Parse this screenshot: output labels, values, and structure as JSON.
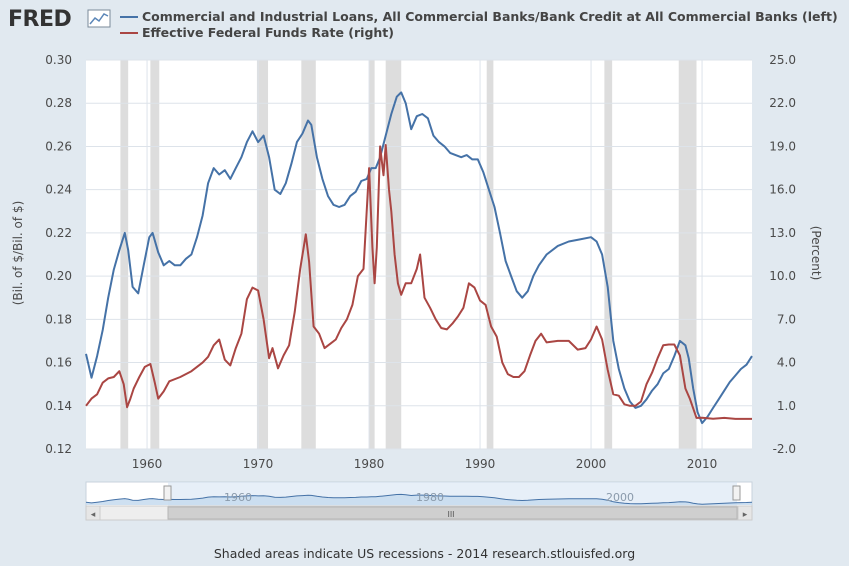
{
  "logo": "FRED",
  "colors": {
    "page_bg": "#e1e9f0",
    "plot_bg": "#ffffff",
    "grid": "#dde3ea",
    "recession": "#dddddd",
    "series_left": "#4572a7",
    "series_right": "#aa4643",
    "navigator_fill": "#c6dbef",
    "navigator_line": "#4572a7"
  },
  "footer_note": "Shaded areas indicate US recessions - 2014 research.stlouisfed.org",
  "navigator": {
    "labels": [
      "1960",
      "1980",
      "2000"
    ],
    "scroll_grip": "III",
    "left_arrow": "◂",
    "right_arrow": "▸"
  },
  "chart_data": {
    "type": "line",
    "title": "",
    "xlabel": "",
    "ylabel_left": "(Bil. of $/Bil. of $)",
    "ylabel_right": "(Percent)",
    "xlim": [
      1954.5,
      2014.5
    ],
    "ylim_left": [
      0.12,
      0.3
    ],
    "ylim_right": [
      -2.0,
      25.0
    ],
    "x_ticks": [
      "1960",
      "1970",
      "1980",
      "1990",
      "2000",
      "2010"
    ],
    "y_ticks_left": [
      "0.12",
      "0.14",
      "0.16",
      "0.18",
      "0.20",
      "0.22",
      "0.24",
      "0.26",
      "0.28",
      "0.30"
    ],
    "y_ticks_right": [
      "-2.0",
      "1.0",
      "4.0",
      "7.0",
      "10.0",
      "13.0",
      "16.0",
      "19.0",
      "22.0",
      "25.0"
    ],
    "grid": true,
    "legend_position": "top",
    "recessions": [
      [
        1957.6,
        1958.3
      ],
      [
        1960.3,
        1961.1
      ],
      [
        1969.9,
        1970.9
      ],
      [
        1973.9,
        1975.2
      ],
      [
        1980.0,
        1980.5
      ],
      [
        1981.5,
        1982.9
      ],
      [
        1990.6,
        1991.2
      ],
      [
        2001.2,
        2001.9
      ],
      [
        2007.9,
        2009.5
      ]
    ],
    "series": [
      {
        "name": "Commercial and Industrial Loans, All Commercial Banks/Bank Credit at All Commercial Banks (left)",
        "axis": "left",
        "x": [
          1954.5,
          1955.0,
          1955.5,
          1956.0,
          1956.5,
          1957.0,
          1957.5,
          1958.0,
          1958.3,
          1958.7,
          1959.2,
          1959.7,
          1960.2,
          1960.5,
          1961.0,
          1961.5,
          1962.0,
          1962.5,
          1963.0,
          1963.5,
          1964.0,
          1964.5,
          1965.0,
          1965.5,
          1966.0,
          1966.5,
          1967.0,
          1967.5,
          1968.0,
          1968.5,
          1969.0,
          1969.5,
          1970.0,
          1970.5,
          1971.0,
          1971.5,
          1972.0,
          1972.5,
          1973.0,
          1973.5,
          1974.0,
          1974.5,
          1974.8,
          1975.3,
          1975.8,
          1976.3,
          1976.8,
          1977.3,
          1977.8,
          1978.3,
          1978.8,
          1979.3,
          1979.8,
          1980.2,
          1980.6,
          1981.0,
          1981.5,
          1982.0,
          1982.5,
          1982.9,
          1983.3,
          1983.8,
          1984.3,
          1984.8,
          1985.3,
          1985.8,
          1986.3,
          1986.8,
          1987.3,
          1987.8,
          1988.3,
          1988.8,
          1989.3,
          1989.8,
          1990.3,
          1990.8,
          1991.3,
          1991.8,
          1992.3,
          1992.8,
          1993.3,
          1993.8,
          1994.3,
          1994.8,
          1995.3,
          1996.0,
          1997.0,
          1998.0,
          1999.0,
          2000.0,
          2000.5,
          2001.0,
          2001.5,
          2002.0,
          2002.5,
          2003.0,
          2003.5,
          2004.0,
          2004.5,
          2005.0,
          2005.5,
          2006.0,
          2006.5,
          2007.0,
          2007.5,
          2008.0,
          2008.5,
          2008.8,
          2009.2,
          2009.6,
          2010.0,
          2010.5,
          2011.0,
          2011.5,
          2012.0,
          2012.5,
          2013.0,
          2013.5,
          2014.0,
          2014.5
        ],
        "values": [
          0.164,
          0.153,
          0.163,
          0.175,
          0.19,
          0.203,
          0.212,
          0.22,
          0.212,
          0.195,
          0.192,
          0.205,
          0.218,
          0.22,
          0.211,
          0.205,
          0.207,
          0.205,
          0.205,
          0.208,
          0.21,
          0.218,
          0.228,
          0.243,
          0.25,
          0.247,
          0.249,
          0.245,
          0.25,
          0.255,
          0.262,
          0.267,
          0.262,
          0.265,
          0.255,
          0.24,
          0.238,
          0.243,
          0.252,
          0.262,
          0.266,
          0.272,
          0.27,
          0.255,
          0.245,
          0.237,
          0.233,
          0.232,
          0.233,
          0.237,
          0.239,
          0.244,
          0.245,
          0.25,
          0.25,
          0.255,
          0.265,
          0.275,
          0.283,
          0.285,
          0.28,
          0.268,
          0.274,
          0.275,
          0.273,
          0.265,
          0.262,
          0.26,
          0.257,
          0.256,
          0.255,
          0.256,
          0.254,
          0.254,
          0.248,
          0.24,
          0.232,
          0.22,
          0.207,
          0.2,
          0.193,
          0.19,
          0.193,
          0.2,
          0.205,
          0.21,
          0.214,
          0.216,
          0.217,
          0.218,
          0.216,
          0.21,
          0.195,
          0.17,
          0.157,
          0.148,
          0.142,
          0.139,
          0.14,
          0.143,
          0.147,
          0.15,
          0.155,
          0.157,
          0.163,
          0.17,
          0.168,
          0.162,
          0.148,
          0.137,
          0.132,
          0.135,
          0.139,
          0.143,
          0.147,
          0.151,
          0.154,
          0.157,
          0.159,
          0.163
        ]
      },
      {
        "name": "Effective Federal Funds Rate (right)",
        "axis": "right",
        "x": [
          1954.5,
          1955.0,
          1955.5,
          1956.0,
          1956.5,
          1957.0,
          1957.5,
          1957.9,
          1958.2,
          1958.5,
          1958.8,
          1959.3,
          1959.8,
          1960.3,
          1960.7,
          1961.0,
          1961.5,
          1962.0,
          1963.0,
          1964.0,
          1965.0,
          1965.5,
          1966.0,
          1966.5,
          1967.0,
          1967.5,
          1968.0,
          1968.5,
          1969.0,
          1969.5,
          1970.0,
          1970.5,
          1971.0,
          1971.3,
          1971.8,
          1972.3,
          1972.8,
          1973.3,
          1973.8,
          1974.3,
          1974.6,
          1975.0,
          1975.5,
          1976.0,
          1976.5,
          1977.0,
          1977.5,
          1978.0,
          1978.5,
          1979.0,
          1979.5,
          1980.0,
          1980.3,
          1980.5,
          1980.7,
          1981.0,
          1981.3,
          1981.5,
          1981.8,
          1982.0,
          1982.3,
          1982.6,
          1982.9,
          1983.3,
          1983.8,
          1984.3,
          1984.6,
          1985.0,
          1985.5,
          1986.0,
          1986.5,
          1987.0,
          1987.5,
          1988.0,
          1988.5,
          1989.0,
          1989.5,
          1990.0,
          1990.5,
          1991.0,
          1991.5,
          1992.0,
          1992.5,
          1993.0,
          1993.5,
          1994.0,
          1994.5,
          1995.0,
          1995.5,
          1996.0,
          1997.0,
          1998.0,
          1998.8,
          1999.5,
          2000.0,
          2000.5,
          2001.0,
          2001.5,
          2002.0,
          2002.5,
          2003.0,
          2003.5,
          2004.0,
          2004.5,
          2005.0,
          2005.5,
          2006.0,
          2006.5,
          2007.0,
          2007.5,
          2008.0,
          2008.5,
          2008.9,
          2009.5,
          2010.0,
          2011.0,
          2012.0,
          2013.0,
          2014.0,
          2014.5
        ],
        "values": [
          1.0,
          1.5,
          1.8,
          2.6,
          2.9,
          3.0,
          3.4,
          2.5,
          0.9,
          1.5,
          2.2,
          3.0,
          3.7,
          3.9,
          2.6,
          1.5,
          2.0,
          2.7,
          3.0,
          3.4,
          4.0,
          4.4,
          5.2,
          5.6,
          4.2,
          3.8,
          5.0,
          6.0,
          8.4,
          9.2,
          9.0,
          7.0,
          4.3,
          5.0,
          3.6,
          4.5,
          5.2,
          7.5,
          10.5,
          12.9,
          11.0,
          6.5,
          6.0,
          5.0,
          5.3,
          5.6,
          6.4,
          7.0,
          8.0,
          10.0,
          10.5,
          17.5,
          12.0,
          9.5,
          12.0,
          19.0,
          17.0,
          19.1,
          16.0,
          14.5,
          11.5,
          9.5,
          8.7,
          9.5,
          9.5,
          10.5,
          11.5,
          8.5,
          7.8,
          7.0,
          6.4,
          6.3,
          6.7,
          7.2,
          7.8,
          9.5,
          9.2,
          8.3,
          8.0,
          6.5,
          5.8,
          4.0,
          3.2,
          3.0,
          3.0,
          3.4,
          4.5,
          5.5,
          6.0,
          5.4,
          5.5,
          5.5,
          4.9,
          5.0,
          5.6,
          6.5,
          5.6,
          3.5,
          1.8,
          1.7,
          1.1,
          1.0,
          1.0,
          1.3,
          2.5,
          3.3,
          4.3,
          5.2,
          5.25,
          5.25,
          4.5,
          2.2,
          1.5,
          0.16,
          0.17,
          0.1,
          0.16,
          0.09,
          0.09,
          0.09
        ]
      }
    ]
  }
}
